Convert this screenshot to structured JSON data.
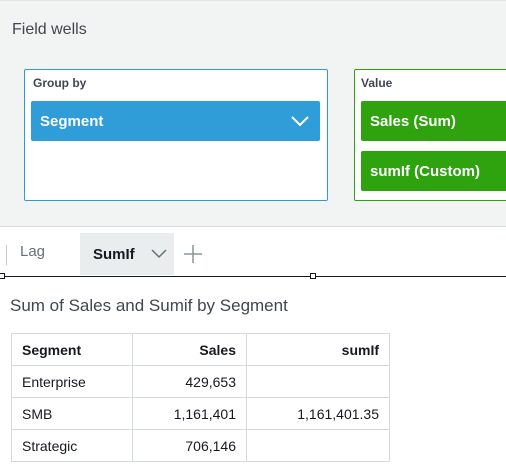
{
  "field_wells": {
    "title": "Field wells",
    "group_by": {
      "label": "Group by",
      "field": "Segment"
    },
    "value": {
      "label": "Value",
      "fields": [
        "Sales (Sum)",
        "sumIf (Custom)"
      ]
    }
  },
  "tabs": [
    {
      "label": "Lag",
      "active": false
    },
    {
      "label": "SumIf",
      "active": true
    }
  ],
  "visual": {
    "title": "Sum of Sales and Sumif by Segment",
    "table": {
      "headers": [
        "Segment",
        "Sales",
        "sumIf"
      ],
      "rows": [
        [
          "Enterprise",
          "429,653",
          ""
        ],
        [
          "SMB",
          "1,161,401",
          "1,161,401.35"
        ],
        [
          "Strategic",
          "706,146",
          ""
        ]
      ]
    }
  },
  "colors": {
    "dimension": "#2e9dd8",
    "measure": "#2ea30e"
  }
}
